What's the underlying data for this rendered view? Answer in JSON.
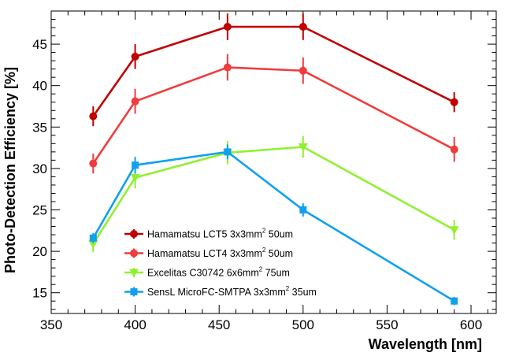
{
  "chart_data": {
    "type": "line",
    "title": "",
    "xlabel": "Wavelength [nm]",
    "ylabel": "Photo-Detection Efficiency [%]",
    "xlim": [
      350,
      615
    ],
    "ylim": [
      12.5,
      49
    ],
    "xticks": [
      350,
      400,
      450,
      500,
      550,
      600
    ],
    "yticks": [
      15,
      20,
      25,
      30,
      35,
      40,
      45
    ],
    "legend_position": "bottom-center",
    "series": [
      {
        "name_main": "Hamamatsu LCT5 3x3mm",
        "name_sup": "2",
        "name_tail": " 50um",
        "color": "#c00000",
        "marker": "circle",
        "x": [
          375,
          400,
          455,
          500,
          590
        ],
        "y": [
          36.3,
          43.5,
          47.1,
          47.1,
          38.0
        ],
        "err": [
          1.2,
          1.5,
          1.6,
          1.6,
          1.2
        ]
      },
      {
        "name_main": "Hamamatsu LCT4 3x3mm",
        "name_sup": "2",
        "name_tail": " 50um",
        "color": "#f03c3c",
        "marker": "circle",
        "x": [
          375,
          400,
          455,
          500,
          590
        ],
        "y": [
          30.6,
          38.1,
          42.2,
          41.8,
          32.3
        ],
        "err": [
          1.2,
          1.5,
          1.6,
          1.6,
          1.5
        ]
      },
      {
        "name_main": "Excelitas C30742 6x6mm",
        "name_sup": "2",
        "name_tail": " 75um",
        "color": "#90f030",
        "marker": "triangle-down",
        "x": [
          375,
          400,
          455,
          500,
          590
        ],
        "y": [
          20.9,
          28.9,
          31.9,
          32.6,
          22.6
        ],
        "err": [
          1.0,
          1.3,
          1.4,
          1.3,
          1.2
        ]
      },
      {
        "name_main": "SensL MicroFC-SMTPA 3x3mm",
        "name_sup": "2",
        "name_tail": " 35um",
        "color": "#10a0f0",
        "marker": "square",
        "x": [
          375,
          400,
          455,
          500,
          590
        ],
        "y": [
          21.6,
          30.4,
          32.0,
          25.0,
          14.0
        ],
        "err": [
          0.6,
          1.0,
          0.9,
          0.8,
          0.5
        ]
      }
    ]
  }
}
